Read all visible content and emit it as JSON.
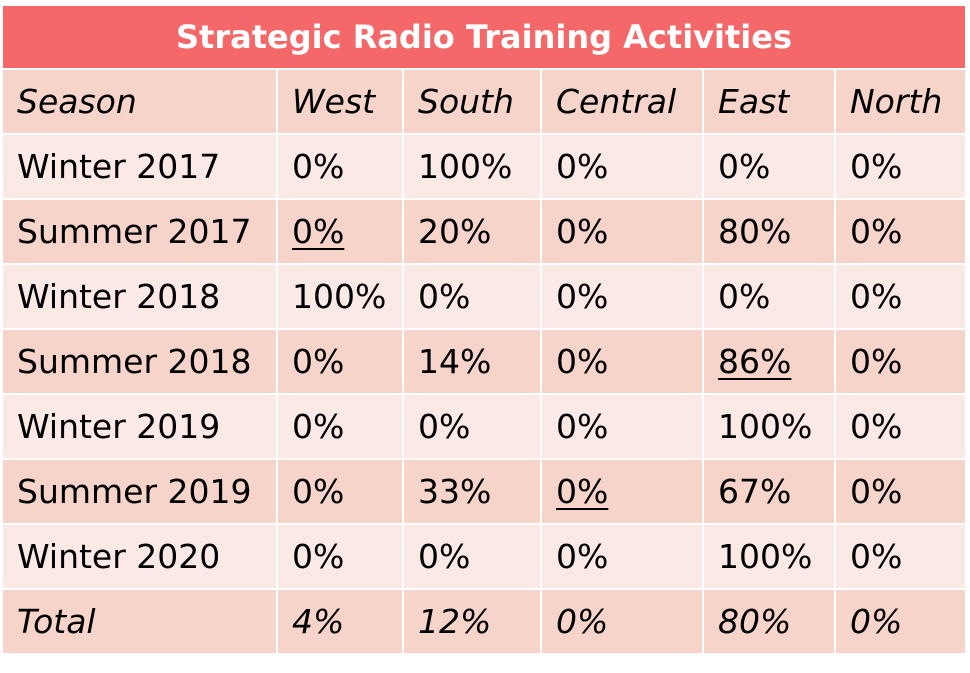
{
  "title": "Strategic Radio Training Activities",
  "colors": {
    "title_bg": "#f4686a",
    "row_dark": "#f7d4ca",
    "row_light": "#fbe9e6"
  },
  "headers": [
    "Season",
    "West",
    "South",
    "Central",
    "East",
    "North"
  ],
  "rows": [
    {
      "season": "Winter 2017",
      "west": "0%",
      "south": "100%",
      "central": "0%",
      "east": "0%",
      "north": "0%",
      "underlined": ""
    },
    {
      "season": "Summer 2017",
      "west": "0%",
      "south": "20%",
      "central": "0%",
      "east": "80%",
      "north": "0%",
      "underlined": "west"
    },
    {
      "season": "Winter 2018",
      "west": "100%",
      "south": "0%",
      "central": "0%",
      "east": "0%",
      "north": "0%",
      "underlined": ""
    },
    {
      "season": "Summer 2018",
      "west": "0%",
      "south": "14%",
      "central": "0%",
      "east": "86%",
      "north": "0%",
      "underlined": "east"
    },
    {
      "season": "Winter 2019",
      "west": "0%",
      "south": "0%",
      "central": "0%",
      "east": "100%",
      "north": "0%",
      "underlined": ""
    },
    {
      "season": "Summer 2019",
      "west": "0%",
      "south": "33%",
      "central": "0%",
      "east": "67%",
      "north": "0%",
      "underlined": "central"
    },
    {
      "season": "Winter 2020",
      "west": "0%",
      "south": "0%",
      "central": "0%",
      "east": "100%",
      "north": "0%",
      "underlined": ""
    }
  ],
  "total": {
    "season": "Total",
    "west": "4%",
    "south": "12%",
    "central": "0%",
    "east": "80%",
    "north": "0%"
  }
}
